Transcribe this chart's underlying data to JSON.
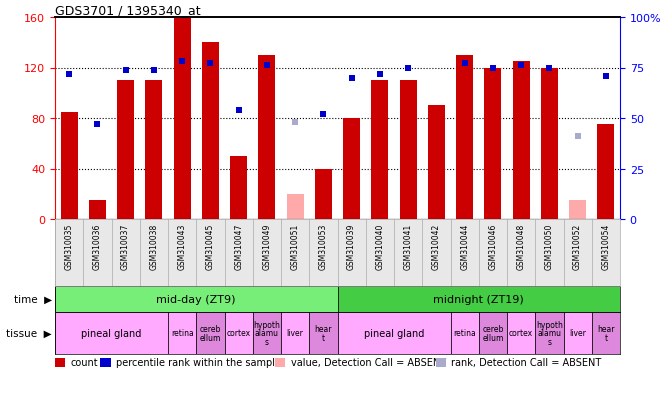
{
  "title": "GDS3701 / 1395340_at",
  "samples": [
    "GSM310035",
    "GSM310036",
    "GSM310037",
    "GSM310038",
    "GSM310043",
    "GSM310045",
    "GSM310047",
    "GSM310049",
    "GSM310051",
    "GSM310053",
    "GSM310039",
    "GSM310040",
    "GSM310041",
    "GSM310042",
    "GSM310044",
    "GSM310046",
    "GSM310048",
    "GSM310050",
    "GSM310052",
    "GSM310054"
  ],
  "bar_values": [
    85,
    15,
    110,
    110,
    160,
    140,
    50,
    130,
    null,
    40,
    80,
    110,
    110,
    90,
    130,
    120,
    125,
    120,
    null,
    75
  ],
  "bar_absent": [
    null,
    null,
    null,
    null,
    null,
    null,
    null,
    null,
    20,
    null,
    null,
    null,
    null,
    null,
    null,
    null,
    null,
    null,
    15,
    null
  ],
  "rank_values": [
    72,
    47,
    74,
    74,
    78,
    77,
    54,
    76,
    null,
    52,
    70,
    72,
    75,
    null,
    77,
    75,
    76,
    75,
    null,
    71
  ],
  "rank_absent": [
    null,
    null,
    null,
    null,
    null,
    null,
    null,
    null,
    48,
    null,
    null,
    null,
    null,
    null,
    null,
    null,
    null,
    null,
    41,
    null
  ],
  "bar_color": "#cc0000",
  "bar_absent_color": "#ffaaaa",
  "rank_color": "#0000cc",
  "rank_absent_color": "#aaaacc",
  "ylim_left": [
    0,
    160
  ],
  "ylim_right": [
    0,
    100
  ],
  "yticks_left": [
    0,
    40,
    80,
    120,
    160
  ],
  "yticks_right": [
    0,
    25,
    50,
    75,
    100
  ],
  "time_groups": [
    {
      "label": "mid-day (ZT9)",
      "start": 0,
      "end": 10,
      "color": "#77ee77"
    },
    {
      "label": "midnight (ZT19)",
      "start": 10,
      "end": 20,
      "color": "#44cc44"
    }
  ],
  "tissue_groups": [
    {
      "label": "pineal gland",
      "start": 0,
      "end": 4,
      "color": "#ffaaff"
    },
    {
      "label": "retina",
      "start": 4,
      "end": 5,
      "color": "#ffaaff"
    },
    {
      "label": "cereb\nellum",
      "start": 5,
      "end": 6,
      "color": "#dd88dd"
    },
    {
      "label": "cortex",
      "start": 6,
      "end": 7,
      "color": "#ffaaff"
    },
    {
      "label": "hypoth\nalamu\ns",
      "start": 7,
      "end": 8,
      "color": "#dd88dd"
    },
    {
      "label": "liver",
      "start": 8,
      "end": 9,
      "color": "#ffaaff"
    },
    {
      "label": "hear\nt",
      "start": 9,
      "end": 10,
      "color": "#dd88dd"
    },
    {
      "label": "pineal gland",
      "start": 10,
      "end": 14,
      "color": "#ffaaff"
    },
    {
      "label": "retina",
      "start": 14,
      "end": 15,
      "color": "#ffaaff"
    },
    {
      "label": "cereb\nellum",
      "start": 15,
      "end": 16,
      "color": "#dd88dd"
    },
    {
      "label": "cortex",
      "start": 16,
      "end": 17,
      "color": "#ffaaff"
    },
    {
      "label": "hypoth\nalamu\ns",
      "start": 17,
      "end": 18,
      "color": "#dd88dd"
    },
    {
      "label": "liver",
      "start": 18,
      "end": 19,
      "color": "#ffaaff"
    },
    {
      "label": "hear\nt",
      "start": 19,
      "end": 20,
      "color": "#dd88dd"
    }
  ],
  "legend_items": [
    {
      "label": "count",
      "color": "#cc0000"
    },
    {
      "label": "percentile rank within the sample",
      "color": "#0000cc"
    },
    {
      "label": "value, Detection Call = ABSENT",
      "color": "#ffaaaa"
    },
    {
      "label": "rank, Detection Call = ABSENT",
      "color": "#aaaacc"
    }
  ],
  "bg_color": "#ffffff"
}
